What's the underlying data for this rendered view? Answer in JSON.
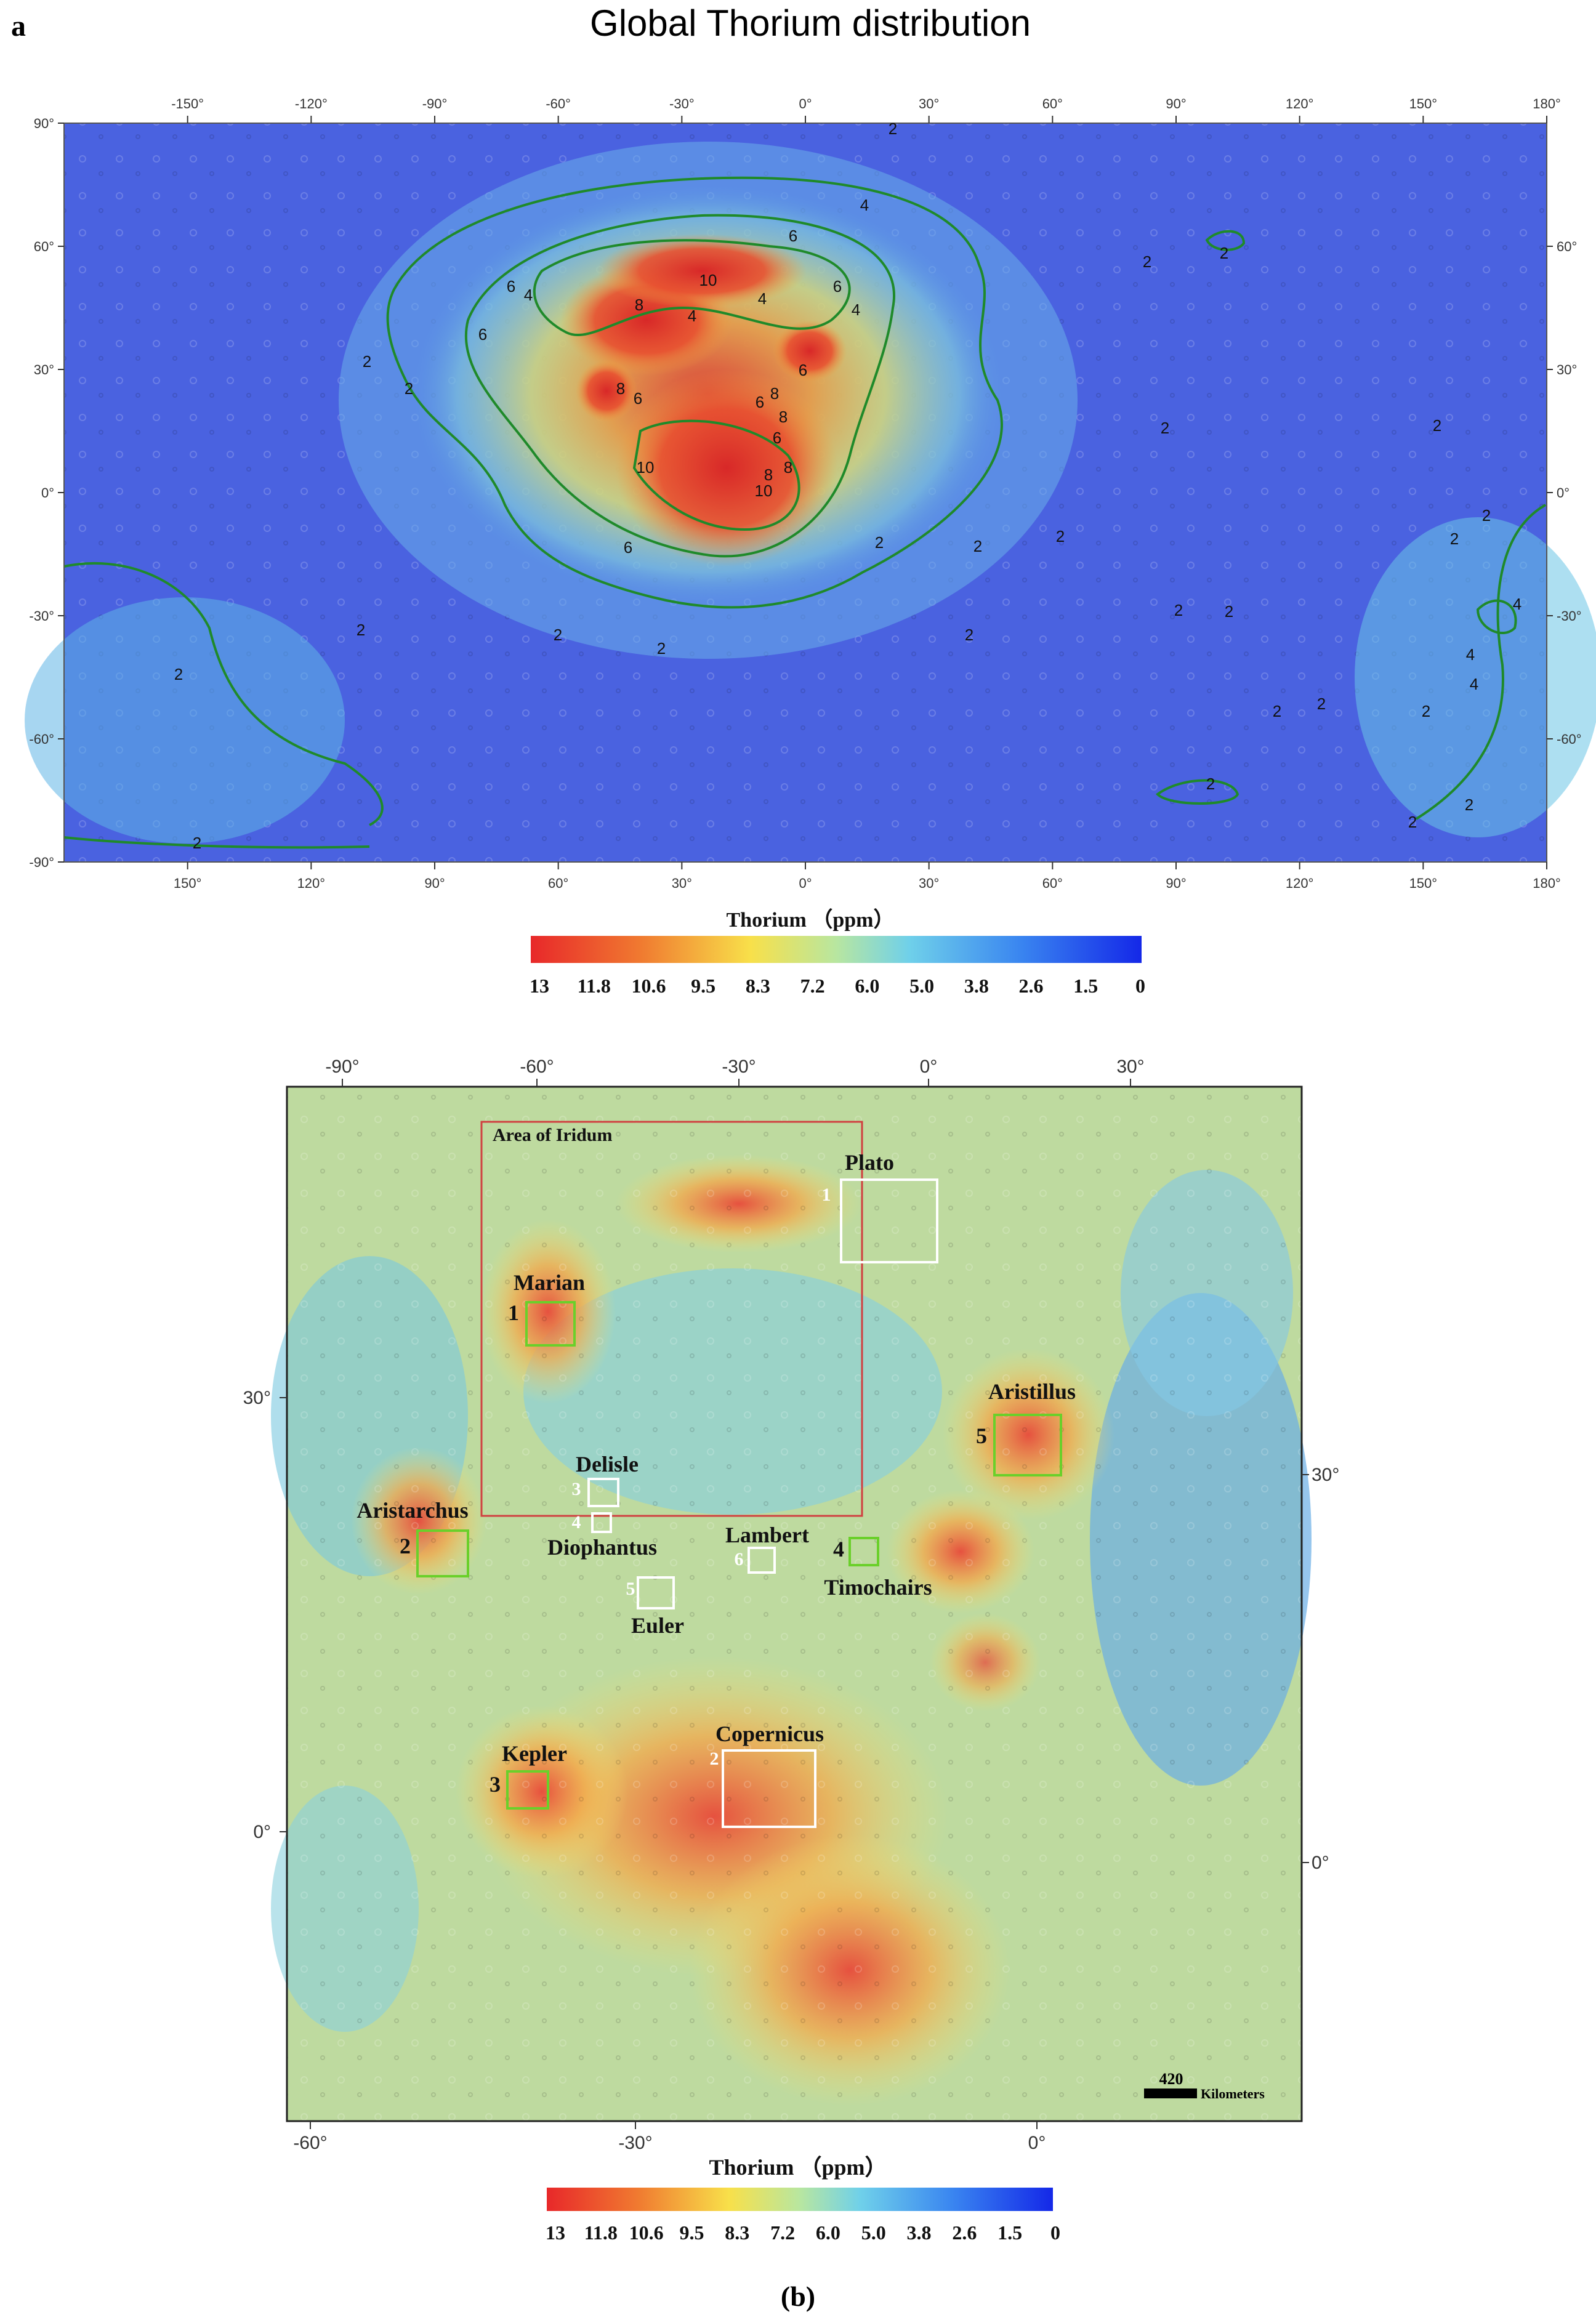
{
  "panel_a": {
    "letter": "a",
    "title": "Global Thorium distribution",
    "top_lon_labels": [
      "-150°",
      "-120°",
      "-90°",
      "-60°",
      "-30°",
      "0°",
      "30°",
      "60°",
      "90°",
      "120°",
      "150°",
      "180°"
    ],
    "bottom_lon_labels": [
      "150°",
      "120°",
      "90°",
      "60°",
      "30°",
      "0°",
      "30°",
      "60°",
      "90°",
      "120°",
      "150°",
      "180°"
    ],
    "left_lat_labels": [
      "90°",
      "60°",
      "30°",
      "0°",
      "-30°",
      "-60°",
      "-90°"
    ],
    "right_lat_labels": [
      "60°",
      "30°",
      "0°",
      "-30°",
      "-60°"
    ],
    "contour_labels": [
      {
        "text": "2"
      },
      {
        "text": "4"
      },
      {
        "text": "6"
      },
      {
        "text": "2"
      },
      {
        "text": "2"
      },
      {
        "text": "6"
      },
      {
        "text": "4"
      },
      {
        "text": "6"
      },
      {
        "text": "10"
      },
      {
        "text": "4"
      },
      {
        "text": "6"
      },
      {
        "text": "4"
      },
      {
        "text": "4"
      },
      {
        "text": "8"
      },
      {
        "text": "2"
      },
      {
        "text": "2"
      },
      {
        "text": "8"
      },
      {
        "text": "6"
      },
      {
        "text": "6"
      },
      {
        "text": "8"
      },
      {
        "text": "6"
      },
      {
        "text": "8"
      },
      {
        "text": "2"
      },
      {
        "text": "2"
      },
      {
        "text": "10"
      },
      {
        "text": "6"
      },
      {
        "text": "8"
      },
      {
        "text": "8"
      },
      {
        "text": "10"
      },
      {
        "text": "2"
      },
      {
        "text": "2"
      },
      {
        "text": "6"
      },
      {
        "text": "2"
      },
      {
        "text": "2"
      },
      {
        "text": "2"
      },
      {
        "text": "2"
      },
      {
        "text": "2"
      },
      {
        "text": "2"
      },
      {
        "text": "2"
      },
      {
        "text": "2"
      },
      {
        "text": "4"
      },
      {
        "text": "4"
      },
      {
        "text": "4"
      },
      {
        "text": "2"
      },
      {
        "text": "2"
      },
      {
        "text": "2"
      },
      {
        "text": "2"
      },
      {
        "text": "2"
      },
      {
        "text": "2"
      },
      {
        "text": "2"
      },
      {
        "text": "2"
      },
      {
        "text": "2"
      }
    ],
    "legend_title": "Thorium （ppm）",
    "legend_ticks": [
      "13",
      "11.8",
      "10.6",
      "9.5",
      "8.3",
      "7.2",
      "6.0",
      "5.0",
      "3.8",
      "2.6",
      "1.5",
      "0"
    ]
  },
  "panel_b": {
    "top_lon_labels": [
      "-90°",
      "-60°",
      "-30°",
      "0°",
      "30°"
    ],
    "bottom_lon_labels": [
      "-60°",
      "-30°",
      "0°"
    ],
    "left_lat_labels": [
      "30°",
      "0°"
    ],
    "right_lat_labels": [
      "30°",
      "0°"
    ],
    "area_label": "Area of Iridum",
    "features": [
      {
        "name": "Plato",
        "number": "1",
        "box_color": "white"
      },
      {
        "name": "Marian",
        "number": "1",
        "box_color": "green"
      },
      {
        "name": "Aristillus",
        "number": "5",
        "box_color": "green"
      },
      {
        "name": "Delisle",
        "number": "3",
        "box_color": "white"
      },
      {
        "name": "Diophantus",
        "number": "4",
        "box_color": "white"
      },
      {
        "name": "Aristarchus",
        "number": "2",
        "box_color": "green"
      },
      {
        "name": "Lambert",
        "number": "6",
        "box_color": "white"
      },
      {
        "name": "Timochairs",
        "number": "4",
        "box_color": "green"
      },
      {
        "name": "Euler",
        "number": "5",
        "box_color": "white"
      },
      {
        "name": "Copernicus",
        "number": "2",
        "box_color": "white"
      },
      {
        "name": "Kepler",
        "number": "3",
        "box_color": "green"
      }
    ],
    "scale_value": "420",
    "scale_unit": "Kilometers",
    "legend_title": "Thorium （ppm）",
    "legend_ticks": [
      "13",
      "11.8",
      "10.6",
      "9.5",
      "8.3",
      "7.2",
      "6.0",
      "5.0",
      "3.8",
      "2.6",
      "1.5",
      "0"
    ],
    "caption": "(b)"
  },
  "colors": {
    "low": "#3c50e0",
    "mid": "#7ad0e8",
    "high_mid": "#f0e050",
    "high": "#e03030",
    "contour": "#1f8a2a",
    "box_green": "#6ad02a",
    "box_white": "#ffffff",
    "area_box": "#d04040"
  }
}
